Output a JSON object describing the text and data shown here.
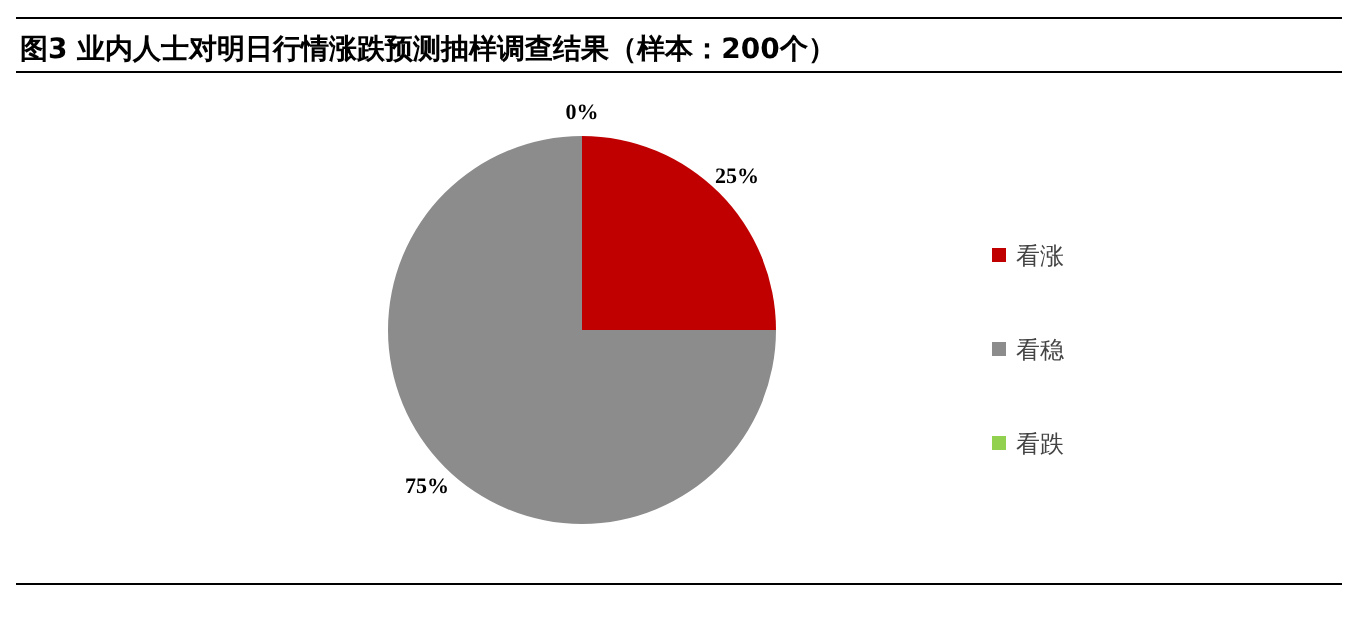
{
  "chart_data": {
    "type": "pie",
    "title": "图3  业内人士对明日行情涨跌预测抽样调查结果（样本：200个）",
    "categories": [
      "看涨",
      "看稳",
      "看跌"
    ],
    "values": [
      25,
      75,
      0
    ],
    "colors": [
      "#c00000",
      "#8c8c8c",
      "#92d050"
    ],
    "value_labels": [
      "25%",
      "75%",
      "0%"
    ],
    "legend": "right"
  }
}
